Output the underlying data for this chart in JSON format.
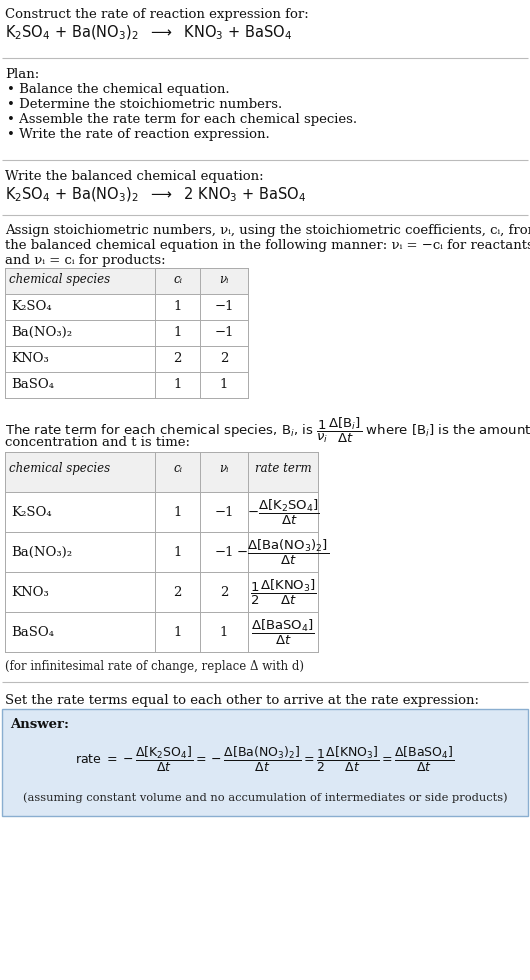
{
  "bg_color": "#ffffff",
  "text_color": "#000000",
  "title_line1": "Construct the rate of reaction expression for:",
  "plan_header": "Plan:",
  "plan_items": [
    "• Balance the chemical equation.",
    "• Determine the stoichiometric numbers.",
    "• Assemble the rate term for each chemical species.",
    "• Write the rate of reaction expression."
  ],
  "balanced_header": "Write the balanced chemical equation:",
  "stoich_text1": "Assign stoichiometric numbers, νᵢ, using the stoichiometric coefficients, cᵢ, from",
  "stoich_text2": "the balanced chemical equation in the following manner: νᵢ = −cᵢ for reactants",
  "stoich_text3": "and νᵢ = cᵢ for products:",
  "table1_headers": [
    "chemical species",
    "cᵢ",
    "νᵢ"
  ],
  "table1_rows": [
    [
      "K₂SO₄",
      "1",
      "−1"
    ],
    [
      "Ba(NO₃)₂",
      "1",
      "−1"
    ],
    [
      "KNO₃",
      "2",
      "2"
    ],
    [
      "BaSO₄",
      "1",
      "1"
    ]
  ],
  "rate_text1": "The rate term for each chemical species, Bᵢ, is",
  "rate_text2": "where [Bᵢ] is the amount",
  "rate_text3": "concentration and t is time:",
  "table2_headers": [
    "chemical species",
    "cᵢ",
    "νᵢ",
    "rate term"
  ],
  "infinitesimal_note": "(for infinitesimal rate of change, replace Δ with d)",
  "final_header": "Set the rate terms equal to each other to arrive at the rate expression:",
  "answer_label": "Answer:",
  "answer_box_color": "#dce8f5",
  "answer_box_border": "#8aaed0",
  "final_note": "(assuming constant volume and no accumulation of intermediates or side products)",
  "table_header_color": "#f0f0f0",
  "table_border_color": "#aaaaaa"
}
